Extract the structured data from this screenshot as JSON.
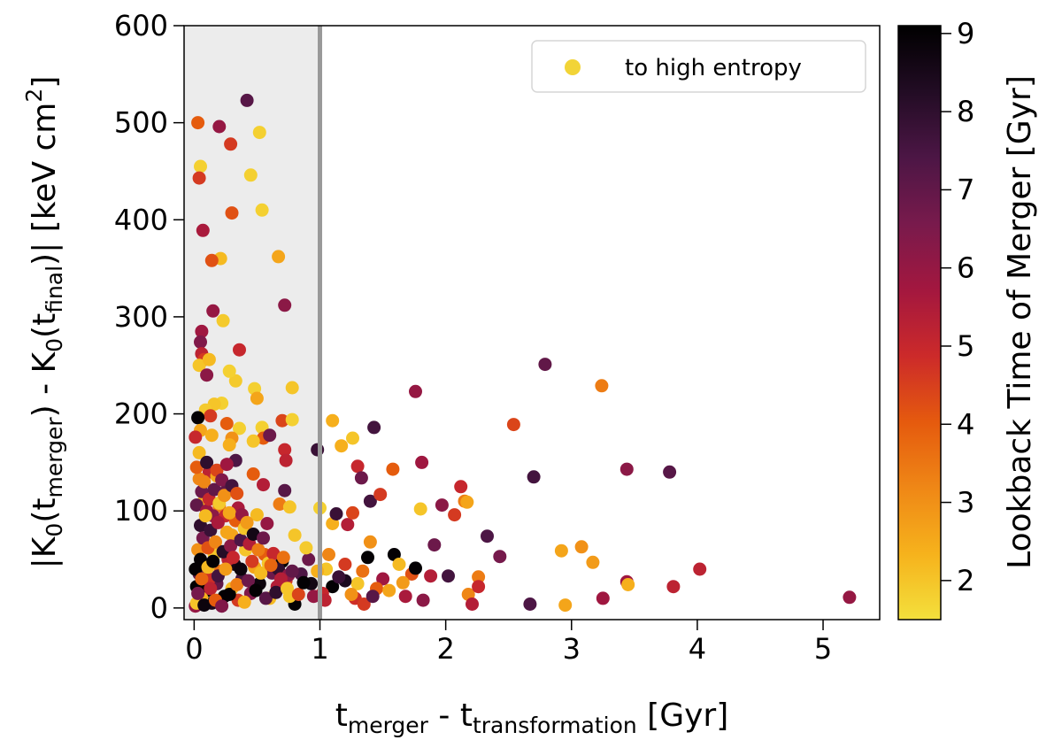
{
  "chart_data": {
    "type": "scatter",
    "xlabel": {
      "main": "t",
      "sub1": "merger",
      "mid": " - t",
      "sub2": "transformation",
      "unit": " [Gyr]"
    },
    "ylabel": {
      "p1": "|K",
      "s1": "0",
      "p2": "(t",
      "s2": "merger",
      "p3": ") - K",
      "s3": "0",
      "p4": "(t",
      "s4": "final",
      "p5": ")| [keV cm",
      "sup": "2",
      "p6": "]"
    },
    "colorbar_label": "Lookback Time of Merger [Gyr]",
    "xlim": [
      -0.08,
      5.45
    ],
    "ylim": [
      -12,
      600
    ],
    "x_ticks": [
      0,
      1,
      2,
      3,
      4,
      5
    ],
    "y_ticks": [
      0,
      100,
      200,
      300,
      400,
      500,
      600
    ],
    "colorbar_ticks": [
      2,
      3,
      4,
      5,
      6,
      7,
      8,
      9
    ],
    "colorbar_range": [
      1.5,
      9.1
    ],
    "shaded_region": [
      -0.08,
      1.0
    ],
    "vertical_line_x": 1.0,
    "legend": {
      "label": "to high entropy",
      "color": "#f2d437",
      "position": "upper right"
    },
    "colormap": [
      "#f3e03c",
      "#f6b21c",
      "#ef8716",
      "#e55a0e",
      "#cc2a2a",
      "#a3173f",
      "#781a4c",
      "#4c1645",
      "#220c24",
      "#000000"
    ],
    "points": [
      [
        0.03,
        500,
        4.0
      ],
      [
        0.05,
        455,
        1.8
      ],
      [
        0.04,
        443,
        4.6
      ],
      [
        0.2,
        496,
        6.0
      ],
      [
        0.42,
        523,
        7.2
      ],
      [
        0.29,
        478,
        4.6
      ],
      [
        0.52,
        490,
        1.8
      ],
      [
        0.45,
        446,
        1.8
      ],
      [
        0.3,
        407,
        4.2
      ],
      [
        0.54,
        410,
        1.8
      ],
      [
        0.07,
        389,
        5.6
      ],
      [
        0.21,
        360,
        2.2
      ],
      [
        0.14,
        358,
        4.2
      ],
      [
        0.67,
        362,
        2.6
      ],
      [
        0.72,
        312,
        6.2
      ],
      [
        0.15,
        306,
        6.0
      ],
      [
        0.06,
        285,
        5.8
      ],
      [
        0.23,
        296,
        1.9
      ],
      [
        0.05,
        274,
        6.4
      ],
      [
        0.06,
        262,
        5.2
      ],
      [
        0.36,
        266,
        5.0
      ],
      [
        0.08,
        256,
        4.6
      ],
      [
        0.04,
        250,
        2.0
      ],
      [
        0.12,
        256,
        2.2
      ],
      [
        0.1,
        240,
        6.2
      ],
      [
        0.33,
        234,
        1.9
      ],
      [
        0.28,
        244,
        1.8
      ],
      [
        0.78,
        227,
        2.0
      ],
      [
        0.48,
        226,
        1.8
      ],
      [
        0.5,
        216,
        2.6
      ],
      [
        0.22,
        211,
        1.8
      ],
      [
        0.16,
        210,
        2.0
      ],
      [
        0.09,
        204,
        1.9
      ],
      [
        0.13,
        198,
        4.6
      ],
      [
        0.03,
        196,
        9.0
      ],
      [
        0.26,
        190,
        4.0
      ],
      [
        0.54,
        186,
        1.8
      ],
      [
        0.36,
        185,
        1.8
      ],
      [
        0.7,
        193,
        4.4
      ],
      [
        0.78,
        194,
        1.8
      ],
      [
        0.05,
        183,
        2.6
      ],
      [
        0.01,
        176,
        5.0
      ],
      [
        0.3,
        175,
        3.0
      ],
      [
        0.55,
        175,
        4.0
      ],
      [
        0.47,
        172,
        2.0
      ],
      [
        0.6,
        178,
        6.8
      ],
      [
        0.72,
        163,
        5.0
      ],
      [
        0.28,
        168,
        2.4
      ],
      [
        0.98,
        163,
        7.8
      ],
      [
        1.1,
        193,
        2.4
      ],
      [
        1.43,
        186,
        7.6
      ],
      [
        1.26,
        175,
        2.0
      ],
      [
        1.17,
        167,
        2.4
      ],
      [
        0.73,
        152,
        5.2
      ],
      [
        0.33,
        152,
        7.4
      ],
      [
        0.12,
        140,
        5.2
      ],
      [
        0.18,
        136,
        2.6
      ],
      [
        0.04,
        133,
        3.2
      ],
      [
        0.25,
        120,
        7.0
      ],
      [
        0.47,
        138,
        4.0
      ],
      [
        0.55,
        127,
        5.4
      ],
      [
        0.72,
        121,
        7.2
      ],
      [
        0.08,
        110,
        2.4
      ],
      [
        0.02,
        106,
        7.0
      ],
      [
        0.1,
        100,
        5.8
      ],
      [
        0.2,
        105,
        3.4
      ],
      [
        0.15,
        95,
        6.2
      ],
      [
        0.35,
        103,
        5.6
      ],
      [
        0.5,
        96,
        2.2
      ],
      [
        0.68,
        107,
        3.4
      ],
      [
        0.76,
        104,
        2.0
      ],
      [
        0.58,
        87,
        6.0
      ],
      [
        0.8,
        75,
        2.0
      ],
      [
        0.3,
        75,
        2.6
      ],
      [
        0.25,
        95,
        5.0
      ],
      [
        1.0,
        103,
        1.8
      ],
      [
        1.1,
        87,
        2.4
      ],
      [
        1.13,
        97,
        7.8
      ],
      [
        1.22,
        86,
        5.4
      ],
      [
        1.3,
        146,
        5.0
      ],
      [
        1.33,
        134,
        6.8
      ],
      [
        1.4,
        110,
        7.6
      ],
      [
        1.26,
        98,
        4.4
      ],
      [
        1.4,
        68,
        3.0
      ],
      [
        1.48,
        117,
        4.6
      ],
      [
        1.58,
        143,
        4.0
      ],
      [
        1.76,
        223,
        6.0
      ],
      [
        1.81,
        150,
        5.8
      ],
      [
        1.8,
        102,
        2.0
      ],
      [
        1.97,
        106,
        6.2
      ],
      [
        2.12,
        125,
        5.0
      ],
      [
        2.15,
        110,
        3.4
      ],
      [
        2.17,
        109,
        2.6
      ],
      [
        2.07,
        96,
        4.6
      ],
      [
        2.54,
        189,
        4.4
      ],
      [
        2.79,
        251,
        7.0
      ],
      [
        3.24,
        229,
        3.4
      ],
      [
        2.7,
        135,
        7.6
      ],
      [
        3.44,
        143,
        6.2
      ],
      [
        3.78,
        140,
        7.2
      ],
      [
        2.33,
        74,
        7.4
      ],
      [
        2.43,
        53,
        6.6
      ],
      [
        2.26,
        32,
        3.4
      ],
      [
        2.02,
        33,
        7.6
      ],
      [
        2.18,
        14,
        3.2
      ],
      [
        2.26,
        22,
        5.0
      ],
      [
        2.21,
        4,
        5.4
      ],
      [
        2.67,
        4,
        7.4
      ],
      [
        2.95,
        3,
        2.6
      ],
      [
        2.92,
        59,
        2.6
      ],
      [
        3.08,
        63,
        3.0
      ],
      [
        3.17,
        47,
        2.8
      ],
      [
        3.25,
        10,
        5.8
      ],
      [
        3.44,
        27,
        5.8
      ],
      [
        3.45,
        24,
        2.4
      ],
      [
        3.81,
        22,
        5.2
      ],
      [
        4.02,
        40,
        5.2
      ],
      [
        5.21,
        11,
        6.0
      ],
      [
        1.59,
        55,
        9.0
      ],
      [
        1.63,
        45,
        2.2
      ],
      [
        1.73,
        35,
        4.2
      ],
      [
        1.76,
        41,
        9.0
      ],
      [
        1.88,
        33,
        5.4
      ],
      [
        1.91,
        65,
        6.8
      ],
      [
        1.66,
        26,
        2.8
      ],
      [
        1.82,
        8,
        6.2
      ],
      [
        1.5,
        30,
        5.8
      ],
      [
        1.45,
        20,
        4.0
      ],
      [
        1.38,
        52,
        9.0
      ],
      [
        1.34,
        38,
        3.6
      ],
      [
        1.3,
        25,
        2.0
      ],
      [
        1.28,
        10,
        4.8
      ],
      [
        1.2,
        45,
        4.6
      ],
      [
        1.2,
        28,
        8.4
      ],
      [
        1.1,
        22,
        9.0
      ],
      [
        1.07,
        55,
        3.2
      ],
      [
        1.05,
        40,
        2.0
      ],
      [
        1.02,
        15,
        5.0
      ],
      [
        0.93,
        25,
        8.6
      ],
      [
        0.91,
        50,
        6.8
      ],
      [
        0.89,
        62,
        1.9
      ],
      [
        0.85,
        35,
        7.4
      ],
      [
        0.8,
        4,
        9.0
      ],
      [
        0.76,
        12,
        2.0
      ],
      [
        0.73,
        28,
        4.6
      ],
      [
        0.7,
        48,
        9.0
      ],
      [
        0.66,
        22,
        5.4
      ],
      [
        0.62,
        36,
        6.8
      ],
      [
        0.6,
        10,
        2.2
      ],
      [
        0.56,
        55,
        4.0
      ],
      [
        0.52,
        25,
        8.8
      ],
      [
        0.48,
        42,
        2.6
      ],
      [
        0.45,
        15,
        6.4
      ],
      [
        0.41,
        60,
        2.0
      ],
      [
        0.38,
        30,
        7.6
      ],
      [
        0.35,
        8,
        4.6
      ],
      [
        0.32,
        45,
        8.6
      ],
      [
        0.3,
        20,
        2.2
      ],
      [
        0.27,
        50,
        5.2
      ],
      [
        0.24,
        12,
        9.0
      ],
      [
        0.21,
        38,
        3.6
      ],
      [
        0.18,
        25,
        7.0
      ],
      [
        0.16,
        55,
        2.0
      ],
      [
        0.14,
        5,
        8.4
      ],
      [
        0.12,
        30,
        4.8
      ],
      [
        0.1,
        18,
        9.0
      ],
      [
        0.08,
        45,
        5.8
      ],
      [
        0.06,
        10,
        2.4
      ],
      [
        0.04,
        35,
        7.2
      ],
      [
        0.02,
        22,
        9.0
      ],
      [
        0.01,
        2,
        6.0
      ],
      [
        0.03,
        60,
        3.0
      ],
      [
        0.05,
        85,
        8.0
      ],
      [
        0.07,
        72,
        6.6
      ],
      [
        0.09,
        95,
        2.2
      ],
      [
        0.11,
        62,
        4.2
      ],
      [
        0.13,
        80,
        7.8
      ],
      [
        0.17,
        68,
        3.2
      ],
      [
        0.19,
        88,
        5.6
      ],
      [
        0.23,
        58,
        8.2
      ],
      [
        0.26,
        78,
        2.6
      ],
      [
        0.29,
        64,
        6.2
      ],
      [
        0.33,
        90,
        4.0
      ],
      [
        0.37,
        70,
        7.4
      ],
      [
        0.4,
        82,
        2.0
      ],
      [
        0.44,
        66,
        5.4
      ],
      [
        0.47,
        76,
        8.6
      ],
      [
        0.51,
        60,
        3.4
      ],
      [
        0.55,
        72,
        6.8
      ],
      [
        0.59,
        46,
        2.0
      ],
      [
        0.63,
        56,
        5.0
      ],
      [
        0.67,
        40,
        8.0
      ],
      [
        0.71,
        52,
        3.6
      ],
      [
        0.75,
        34,
        6.2
      ],
      [
        0.02,
        145,
        4.0
      ],
      [
        0.04,
        160,
        2.2
      ],
      [
        0.06,
        120,
        6.8
      ],
      [
        0.08,
        130,
        3.2
      ],
      [
        0.1,
        150,
        8.0
      ],
      [
        0.12,
        112,
        5.0
      ],
      [
        0.14,
        178,
        2.4
      ],
      [
        0.16,
        122,
        7.0
      ],
      [
        0.18,
        142,
        4.4
      ],
      [
        0.2,
        108,
        1.9
      ],
      [
        0.22,
        132,
        6.4
      ],
      [
        0.24,
        116,
        3.0
      ],
      [
        0.26,
        148,
        5.8
      ],
      [
        0.28,
        98,
        2.6
      ],
      [
        0.3,
        126,
        7.6
      ],
      [
        0.34,
        118,
        4.2
      ],
      [
        0.38,
        96,
        6.0
      ],
      [
        0.42,
        88,
        2.8
      ],
      [
        0.01,
        40,
        9.0
      ],
      [
        0.02,
        5,
        2.0
      ],
      [
        0.03,
        15,
        6.6
      ],
      [
        0.05,
        50,
        9.0
      ],
      [
        0.06,
        30,
        3.8
      ],
      [
        0.08,
        3,
        8.8
      ],
      [
        0.11,
        42,
        2.2
      ],
      [
        0.13,
        20,
        5.2
      ],
      [
        0.15,
        48,
        9.0
      ],
      [
        0.17,
        8,
        4.0
      ],
      [
        0.19,
        33,
        7.6
      ],
      [
        0.22,
        2,
        6.4
      ],
      [
        0.25,
        40,
        2.8
      ],
      [
        0.28,
        14,
        9.0
      ],
      [
        0.31,
        52,
        5.0
      ],
      [
        0.34,
        24,
        3.4
      ],
      [
        0.37,
        40,
        8.8
      ],
      [
        0.4,
        6,
        2.4
      ],
      [
        0.43,
        28,
        6.8
      ],
      [
        0.46,
        48,
        4.6
      ],
      [
        0.49,
        18,
        9.0
      ],
      [
        0.53,
        36,
        2.2
      ],
      [
        0.57,
        10,
        7.2
      ],
      [
        0.61,
        44,
        3.8
      ],
      [
        0.65,
        16,
        8.0
      ],
      [
        0.69,
        30,
        5.4
      ],
      [
        0.74,
        20,
        2.0
      ],
      [
        0.78,
        38,
        7.0
      ],
      [
        0.83,
        14,
        4.4
      ],
      [
        0.87,
        26,
        9.0
      ],
      [
        0.95,
        12,
        6.0
      ],
      [
        0.98,
        38,
        2.4
      ],
      [
        1.04,
        8,
        5.2
      ],
      [
        1.15,
        32,
        7.8
      ],
      [
        1.25,
        14,
        3.0
      ],
      [
        1.35,
        4,
        4.6
      ],
      [
        1.42,
        12,
        7.2
      ],
      [
        1.55,
        18,
        2.6
      ],
      [
        1.68,
        12,
        5.6
      ]
    ]
  }
}
